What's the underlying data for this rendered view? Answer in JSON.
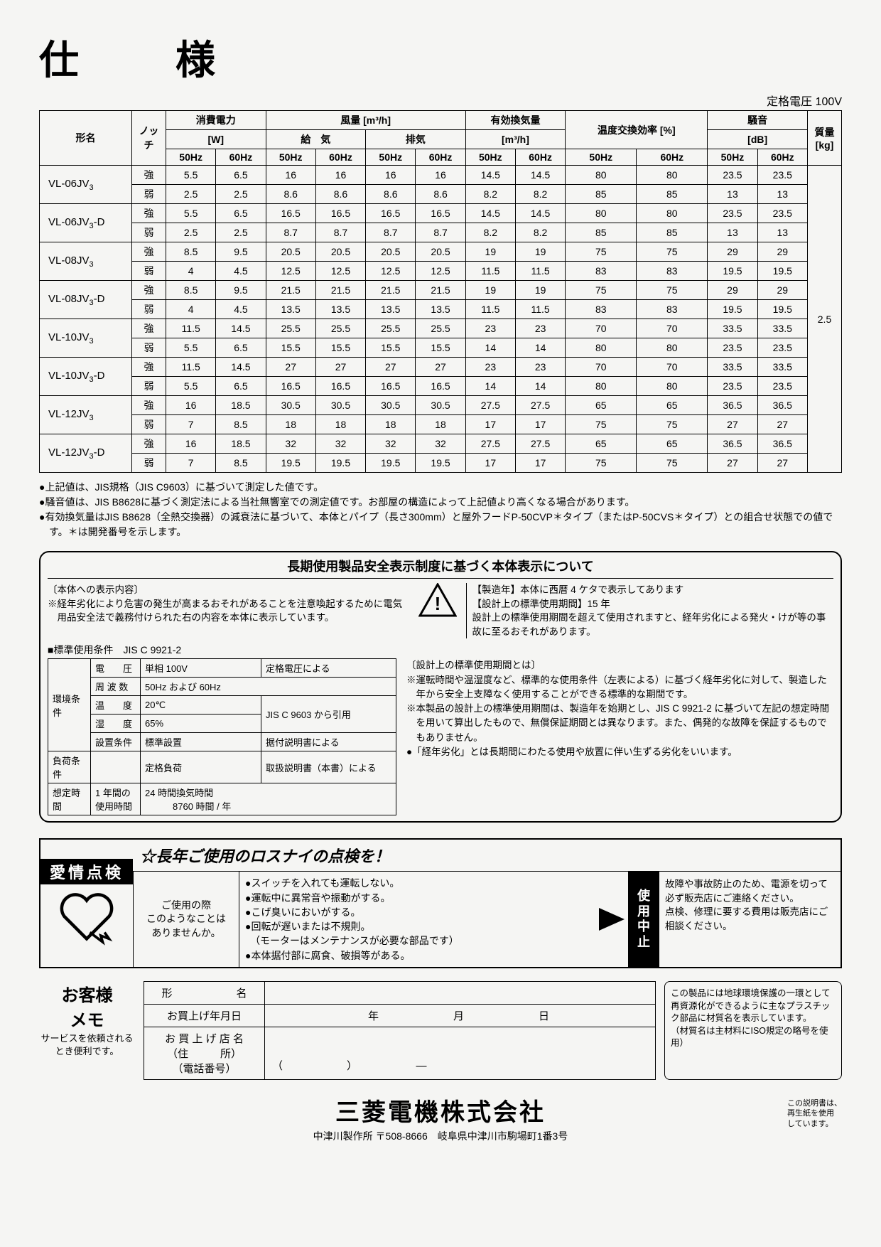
{
  "page_title": "仕　様",
  "rated_voltage": "定格電圧 100V",
  "spec_table": {
    "headers": {
      "model": "形名",
      "notch": "ノッチ",
      "power": "消費電力",
      "power_unit": "[W]",
      "airflow": "風量 [m³/h]",
      "supply": "給　気",
      "exhaust": "排気",
      "eff_vent": "有効換気量",
      "eff_unit": "[m³/h]",
      "temp_eff": "温度交換効率 [%]",
      "noise": "騒音",
      "noise_unit": "[dB]",
      "mass": "質量",
      "mass_unit": "[kg]",
      "hz50": "50Hz",
      "hz60": "60Hz"
    },
    "notch_hi": "強",
    "notch_lo": "弱",
    "models": [
      {
        "name": "VL-06JV₃",
        "hi": [
          "5.5",
          "6.5",
          "16",
          "16",
          "16",
          "16",
          "14.5",
          "14.5",
          "80",
          "80",
          "23.5",
          "23.5"
        ],
        "lo": [
          "2.5",
          "2.5",
          "8.6",
          "8.6",
          "8.6",
          "8.6",
          "8.2",
          "8.2",
          "85",
          "85",
          "13",
          "13"
        ]
      },
      {
        "name": "VL-06JV₃-D",
        "hi": [
          "5.5",
          "6.5",
          "16.5",
          "16.5",
          "16.5",
          "16.5",
          "14.5",
          "14.5",
          "80",
          "80",
          "23.5",
          "23.5"
        ],
        "lo": [
          "2.5",
          "2.5",
          "8.7",
          "8.7",
          "8.7",
          "8.7",
          "8.2",
          "8.2",
          "85",
          "85",
          "13",
          "13"
        ]
      },
      {
        "name": "VL-08JV₃",
        "hi": [
          "8.5",
          "9.5",
          "20.5",
          "20.5",
          "20.5",
          "20.5",
          "19",
          "19",
          "75",
          "75",
          "29",
          "29"
        ],
        "lo": [
          "4",
          "4.5",
          "12.5",
          "12.5",
          "12.5",
          "12.5",
          "11.5",
          "11.5",
          "83",
          "83",
          "19.5",
          "19.5"
        ]
      },
      {
        "name": "VL-08JV₃-D",
        "hi": [
          "8.5",
          "9.5",
          "21.5",
          "21.5",
          "21.5",
          "21.5",
          "19",
          "19",
          "75",
          "75",
          "29",
          "29"
        ],
        "lo": [
          "4",
          "4.5",
          "13.5",
          "13.5",
          "13.5",
          "13.5",
          "11.5",
          "11.5",
          "83",
          "83",
          "19.5",
          "19.5"
        ]
      },
      {
        "name": "VL-10JV₃",
        "hi": [
          "11.5",
          "14.5",
          "25.5",
          "25.5",
          "25.5",
          "25.5",
          "23",
          "23",
          "70",
          "70",
          "33.5",
          "33.5"
        ],
        "lo": [
          "5.5",
          "6.5",
          "15.5",
          "15.5",
          "15.5",
          "15.5",
          "14",
          "14",
          "80",
          "80",
          "23.5",
          "23.5"
        ]
      },
      {
        "name": "VL-10JV₃-D",
        "hi": [
          "11.5",
          "14.5",
          "27",
          "27",
          "27",
          "27",
          "23",
          "23",
          "70",
          "70",
          "33.5",
          "33.5"
        ],
        "lo": [
          "5.5",
          "6.5",
          "16.5",
          "16.5",
          "16.5",
          "16.5",
          "14",
          "14",
          "80",
          "80",
          "23.5",
          "23.5"
        ]
      },
      {
        "name": "VL-12JV₃",
        "hi": [
          "16",
          "18.5",
          "30.5",
          "30.5",
          "30.5",
          "30.5",
          "27.5",
          "27.5",
          "65",
          "65",
          "36.5",
          "36.5"
        ],
        "lo": [
          "7",
          "8.5",
          "18",
          "18",
          "18",
          "18",
          "17",
          "17",
          "75",
          "75",
          "27",
          "27"
        ]
      },
      {
        "name": "VL-12JV₃-D",
        "hi": [
          "16",
          "18.5",
          "32",
          "32",
          "32",
          "32",
          "27.5",
          "27.5",
          "65",
          "65",
          "36.5",
          "36.5"
        ],
        "lo": [
          "7",
          "8.5",
          "19.5",
          "19.5",
          "19.5",
          "19.5",
          "17",
          "17",
          "75",
          "75",
          "27",
          "27"
        ]
      }
    ],
    "mass_value": "2.5"
  },
  "notes": [
    "●上記値は、JIS規格（JIS C9603）に基づいて測定した値です。",
    "●騒音値は、JIS B8628に基づく測定法による当社無響室での測定値です。お部屋の構造によって上記値より高くなる場合があります。",
    "●有効換気量はJIS B8628（全熱交換器）の減衰法に基づいて、本体とパイプ（長さ300mm）と屋外フードP-50CVP＊タイプ（またはP-50CVS＊タイプ）との組合せ状態での値です。＊は開発番号を示します。"
  ],
  "longterm": {
    "title": "長期使用製品安全表示制度に基づく本体表示について",
    "left_heading": "〔本体への表示内容〕",
    "left_text": "※経年劣化により危害の発生が高まるおそれがあることを注意喚起するために電気用品安全法で義務付けられた右の内容を本体に表示しています。",
    "right_line1": "【製造年】本体に西暦 4 ケタで表示してあります",
    "right_line2": "【設計上の標準使用期間】15 年",
    "right_text": "設計上の標準使用期間を超えて使用されますと、経年劣化による発火・けが等の事故に至るおそれがあります。",
    "cond_title": "■標準使用条件　JIS C 9921-2",
    "cond_rows": [
      [
        "環境条件",
        "電　　圧",
        "単相 100V",
        "定格電圧による"
      ],
      [
        "",
        "周 波 数",
        "50Hz および 60Hz",
        ""
      ],
      [
        "",
        "温　　度",
        "20℃",
        "JIS C 9603 から引用"
      ],
      [
        "",
        "湿　　度",
        "65%",
        ""
      ],
      [
        "",
        "設置条件",
        "標準設置",
        "据付説明書による"
      ],
      [
        "負荷条件",
        "",
        "定格負荷",
        "取扱説明書（本書）による"
      ],
      [
        "想定時間",
        "1 年間の使用時間",
        "24 時間換気時間\n　　　8760 時間 / 年",
        ""
      ]
    ],
    "desc_heading": "〔設計上の標準使用期間とは〕",
    "desc_items": [
      "※運転時間や温湿度など、標準的な使用条件（左表による）に基づく経年劣化に対して、製造した年から安全上支障なく使用することができる標準的な期間です。",
      "※本製品の設計上の標準使用期間は、製造年を始期とし、JIS C 9921-2 に基づいて左記の想定時間を用いて算出したもので、無償保証期間とは異なります。また、偶発的な故障を保証するものでもありません。",
      "●「経年劣化」とは長期間にわたる使用や放置に伴い生ずる劣化をいいます。"
    ]
  },
  "inspection": {
    "label": "愛情点検",
    "title": "☆長年ご使用のロスナイの点検を！",
    "mid1": "ご使用の際\nこのようなことは\nありませんか。",
    "list": [
      "●スイッチを入れても運転しない。",
      "●運転中に異常音や振動がする。",
      "●こげ臭いにおいがする。",
      "●回転が遅いまたは不規則。",
      "　（モーターはメンテナンスが必要な部品です）",
      "●本体据付部に腐食、破損等がある。"
    ],
    "stop": "使用中止",
    "right_text": "故障や事故防止のため、電源を切って必ず販売店にご連絡ください。\n点検、修理に要する費用は販売店にご相談ください。"
  },
  "memo": {
    "label_big": "お客様\nメモ",
    "label_sub": "サービスを依頼されるとき便利です。",
    "rows": [
      [
        "形　　　　　　名",
        ""
      ],
      [
        "お買上げ年月日",
        "　　　　　　　　　年　　　　　　　月　　　　　　　日"
      ],
      [
        "お 買 上 げ 店 名\n（住　　　所）\n（電話番号）",
        "\n\n（　　　　　　）　　　　　　—"
      ]
    ]
  },
  "recycle": "この製品には地球環境保護の一環として再資源化ができるように主なプラスチック部品に材質名を表示しています。\n（材質名は主材料にISO規定の略号を使用）",
  "footer": {
    "company": "三菱電機株式会社",
    "address": "中津川製作所 〒508-8666　岐阜県中津川市駒場町1番3号",
    "recycled": "この説明書は、\n再生紙を使用\nしています。"
  }
}
